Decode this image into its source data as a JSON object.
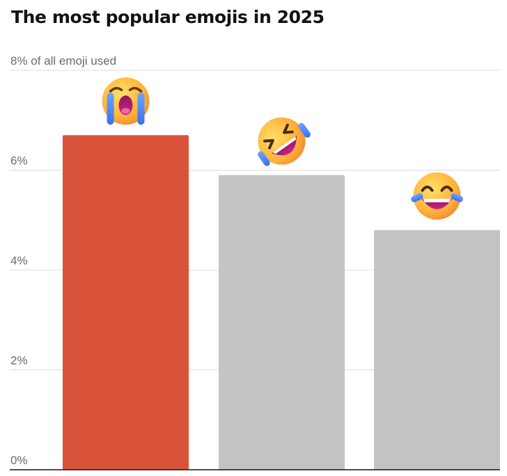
{
  "title": "The most popular emojis in 2025",
  "colors": {
    "highlight": "#d9533a",
    "bar": "#c4c4c4",
    "grid": "#dcdcdc",
    "text": "#121212",
    "tick": "#6b6b6b"
  },
  "chart_data": {
    "type": "bar",
    "title": "The most popular emojis in 2025",
    "xlabel": "",
    "ylabel": "",
    "unit": "% of all emoji used",
    "ylim": [
      0,
      8
    ],
    "y_ticks": [
      {
        "value": 0,
        "label": "0%"
      },
      {
        "value": 2,
        "label": "2%"
      },
      {
        "value": 4,
        "label": "4%"
      },
      {
        "value": 6,
        "label": "6%"
      },
      {
        "value": 8,
        "label": "8% of all emoji used"
      }
    ],
    "grid": true,
    "categories": [
      "loudly-crying-face",
      "rolling-on-the-floor-laughing",
      "face-with-tears-of-joy"
    ],
    "category_icons": [
      "loudly-crying-face-icon",
      "rolling-on-the-floor-laughing-icon",
      "face-with-tears-of-joy-icon"
    ],
    "values": [
      6.7,
      5.9,
      4.8
    ],
    "highlight_index": 0
  }
}
